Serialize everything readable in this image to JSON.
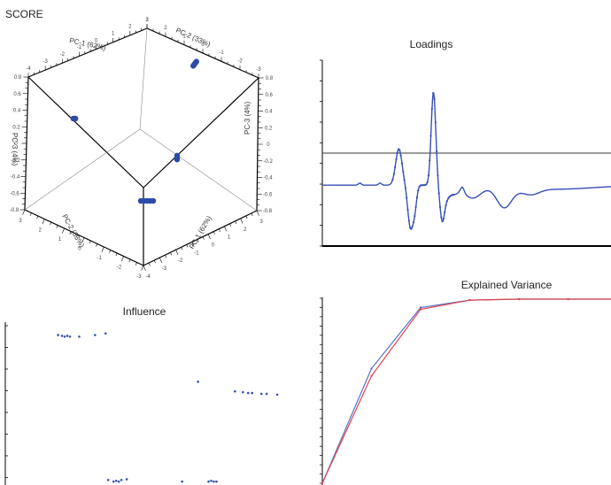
{
  "chart_data": [
    {
      "panel": "score",
      "type": "scatter",
      "title": "SCORE",
      "axes": [
        {
          "name": "PC-1",
          "label": "PC-1 (62%)",
          "range": [
            -4,
            3
          ]
        },
        {
          "name": "PC-2",
          "label": "PC-2 (33%)",
          "range": [
            -3,
            3
          ]
        },
        {
          "name": "PC-3",
          "label": "PC-3 (4%)",
          "range": [
            -0.8,
            0.8
          ]
        }
      ],
      "clusters": [
        {
          "pc1": -3.0,
          "pc2": 2.4,
          "pc3": 0.2,
          "count": 3
        },
        {
          "pc1": 2.2,
          "pc2": 1.9,
          "pc3": 0.7,
          "count": 4
        },
        {
          "pc1": 0.9,
          "pc2": -1.4,
          "pc3": 0.0,
          "count": 3
        },
        {
          "pc1": 1.6,
          "pc2": -2.2,
          "pc3": -0.3,
          "count": 5
        }
      ],
      "point_color": "#2d4aa8"
    },
    {
      "panel": "loadings",
      "type": "line",
      "title": "Loadings",
      "xlim": [
        0,
        100
      ],
      "ylim": [
        -0.6,
        1.2
      ],
      "baseline": 0,
      "line_color": "#3850b8"
    },
    {
      "panel": "influence",
      "type": "scatter",
      "title": "Influence",
      "xlim": [
        0,
        100
      ],
      "ylim": [
        0,
        100
      ],
      "groups": [
        {
          "x": [
            20,
            21.5,
            22.5,
            23.5,
            24.5,
            28,
            34,
            38
          ],
          "y": [
            92,
            91.5,
            91,
            91.5,
            91,
            91,
            92,
            93
          ]
        },
        {
          "x": [
            73,
            87,
            90,
            92,
            93.5,
            97,
            99,
            103
          ],
          "y": [
            63,
            57,
            56.5,
            56,
            56,
            55.5,
            55.5,
            55
          ]
        },
        {
          "x": [
            39,
            41,
            42,
            43,
            44,
            46,
            67,
            77,
            78,
            79,
            80
          ],
          "y": [
            2,
            1,
            1.5,
            1,
            2,
            2.5,
            1,
            1,
            1.5,
            1,
            1
          ]
        }
      ],
      "point_color": "#3550b0"
    },
    {
      "panel": "explained-variance",
      "type": "line",
      "title": "Explained Variance",
      "x": [
        0,
        1,
        2,
        3,
        4,
        5,
        6
      ],
      "series": [
        {
          "values": [
            0,
            62,
            95,
            99,
            99.5,
            99.5,
            99.5
          ],
          "color": "#5a6fc8"
        },
        {
          "values": [
            0,
            58,
            94,
            99,
            99.5,
            99.5,
            99.5
          ],
          "color": "#e0454d"
        }
      ],
      "ylim": [
        0,
        100
      ]
    }
  ]
}
